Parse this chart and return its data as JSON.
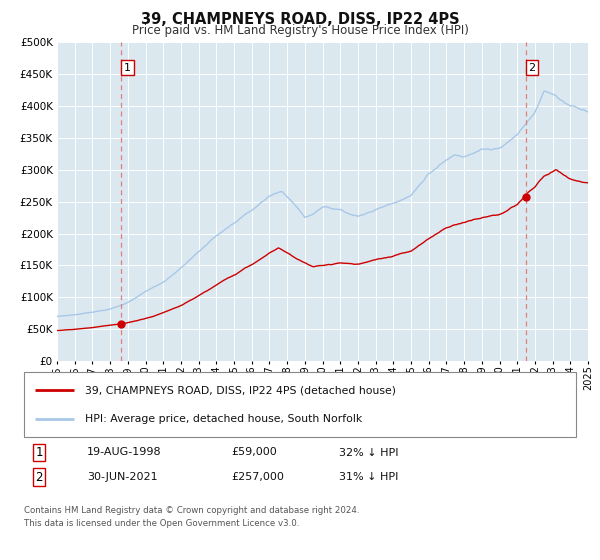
{
  "title": "39, CHAMPNEYS ROAD, DISS, IP22 4PS",
  "subtitle": "Price paid vs. HM Land Registry's House Price Index (HPI)",
  "legend_line1": "39, CHAMPNEYS ROAD, DISS, IP22 4PS (detached house)",
  "legend_line2": "HPI: Average price, detached house, South Norfolk",
  "annotation1_date": "19-AUG-1998",
  "annotation1_price": "£59,000",
  "annotation1_hpi": "32% ↓ HPI",
  "annotation2_date": "30-JUN-2021",
  "annotation2_price": "£257,000",
  "annotation2_hpi": "31% ↓ HPI",
  "footer1": "Contains HM Land Registry data © Crown copyright and database right 2024.",
  "footer2": "This data is licensed under the Open Government Licence v3.0.",
  "hpi_color": "#a8c8e8",
  "price_color": "#cc0000",
  "dot_color": "#cc0000",
  "vline_color": "#e08080",
  "plot_bg_color": "#dce8f0",
  "grid_color": "#ffffff",
  "ylim": [
    0,
    500000
  ],
  "yticks": [
    0,
    50000,
    100000,
    150000,
    200000,
    250000,
    300000,
    350000,
    400000,
    450000,
    500000
  ],
  "sale1_year": 1998.63,
  "sale1_value": 59000,
  "sale2_year": 2021.49,
  "sale2_value": 257000,
  "xstart": 1995,
  "xend": 2025
}
